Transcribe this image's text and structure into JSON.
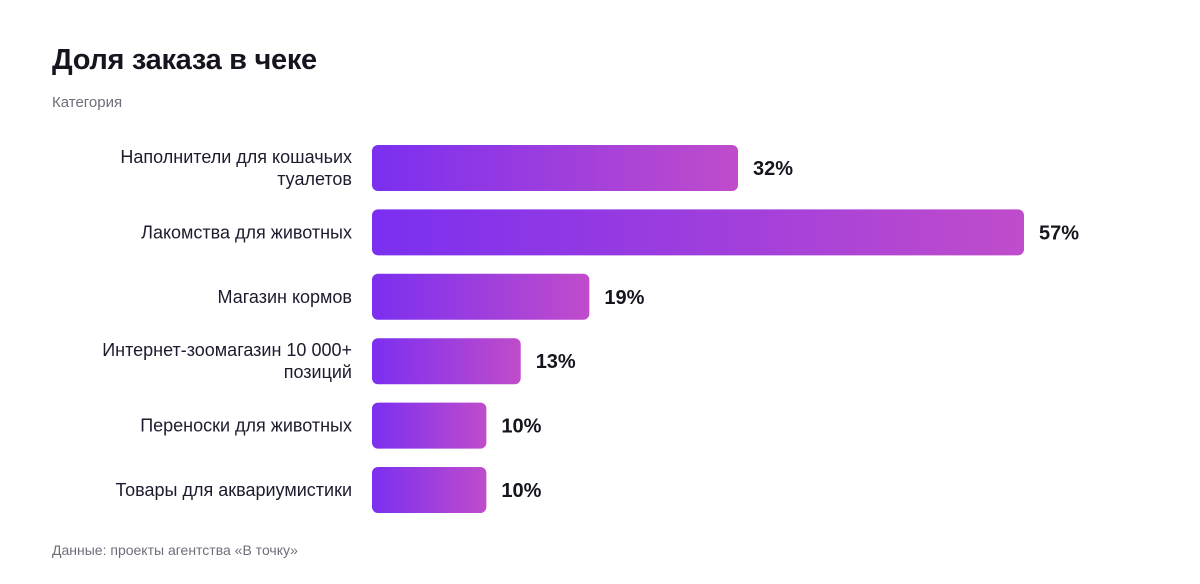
{
  "title": "Доля заказа в чеке",
  "subtitle": "Категория",
  "source": "Данные: проекты агентства «В точку»",
  "colors": {
    "bar_start": "#7b2ff0",
    "bar_end": "#c04ccb",
    "label_text": "#1c1c2e"
  },
  "chart_data": {
    "type": "bar",
    "orientation": "horizontal",
    "title": "Доля заказа в чеке",
    "subtitle": "Категория",
    "categories": [
      [
        "Наполнители для кошачьих",
        "туалетов"
      ],
      [
        "Лакомства для животных"
      ],
      [
        "Магазин кормов"
      ],
      [
        "Интернет-зоомагазин 10 000+",
        "позиций"
      ],
      [
        "Переноски для животных"
      ],
      [
        "Товары для аквариумистики"
      ]
    ],
    "values": [
      32,
      57,
      19,
      13,
      10,
      10
    ],
    "value_labels": [
      "32%",
      "57%",
      "19%",
      "13%",
      "10%",
      "10%"
    ],
    "unit": "%",
    "xlim": [
      0,
      57
    ],
    "grid": false,
    "legend": "none"
  }
}
